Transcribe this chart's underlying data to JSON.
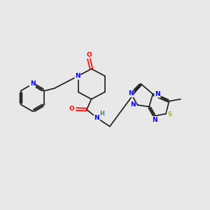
{
  "bg_color": "#e8e8e8",
  "bond_color": "#1a1a1a",
  "N_color": "#0000ff",
  "O_color": "#ff0000",
  "S_color": "#b8b800",
  "H_color": "#3a8a8a",
  "font_size": 6.5,
  "bond_lw": 1.2,
  "figsize": [
    3.0,
    3.0
  ],
  "dpi": 100,
  "xlim": [
    0,
    10
  ],
  "ylim": [
    0,
    10
  ]
}
